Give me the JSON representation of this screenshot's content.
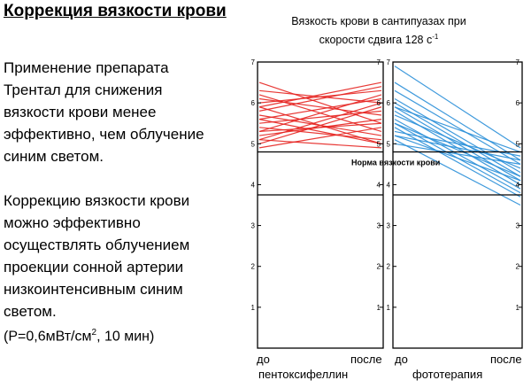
{
  "slide": {
    "title": "Коррекция вязкости крови",
    "paragraph1": [
      "Применение препарата",
      "Трентал для снижения",
      "вязкости крови менее",
      "эффективно, чем облучение",
      "синим светом."
    ],
    "paragraph2": [
      "Коррекцию вязкости крови",
      "можно эффективно",
      "осуществлять облучением",
      "проекции сонной артерии",
      "низкоинтенсивным синим",
      "светом."
    ],
    "note_prefix": "(P=0,6мВт/см",
    "note_sup": "2",
    "note_suffix": ", 10 мин)"
  },
  "chart_data": {
    "type": "line",
    "title_line1": "Вязкость крови в сантипуазах при",
    "title_line2_prefix": "скорости сдвига 128 с",
    "title_line2_sup": "-1",
    "ylim": [
      0,
      7
    ],
    "yticks": [
      1,
      2,
      3,
      4,
      5,
      6,
      7
    ],
    "norm_label": "Норма вязкости крови",
    "norm_lines": [
      3.75,
      4.8
    ],
    "panels": [
      {
        "name": "пентоксифеллин",
        "x_labels": [
          "до",
          "после"
        ],
        "color": "#e52420",
        "pairs": [
          [
            6.5,
            5.5
          ],
          [
            6.3,
            6.0
          ],
          [
            6.2,
            5.3
          ],
          [
            6.0,
            6.3
          ],
          [
            5.9,
            5.0
          ],
          [
            5.8,
            6.4
          ],
          [
            5.7,
            5.2
          ],
          [
            5.6,
            6.1
          ],
          [
            5.5,
            5.8
          ],
          [
            5.4,
            5.1
          ],
          [
            5.3,
            6.2
          ],
          [
            5.2,
            5.6
          ],
          [
            5.1,
            4.9
          ],
          [
            5.0,
            5.9
          ],
          [
            4.9,
            5.4
          ],
          [
            6.1,
            5.7
          ],
          [
            5.6,
            5.0
          ],
          [
            5.9,
            6.5
          ],
          [
            5.3,
            5.5
          ],
          [
            5.1,
            6.0
          ]
        ]
      },
      {
        "name": "фототерапия",
        "x_labels": [
          "до",
          "после"
        ],
        "color": "#2a8fd8",
        "pairs": [
          [
            6.9,
            4.9
          ],
          [
            6.5,
            4.6
          ],
          [
            6.3,
            4.5
          ],
          [
            6.1,
            4.3
          ],
          [
            5.9,
            4.8
          ],
          [
            5.8,
            4.0
          ],
          [
            5.7,
            4.4
          ],
          [
            5.6,
            3.9
          ],
          [
            5.5,
            4.2
          ],
          [
            5.4,
            3.7
          ],
          [
            5.3,
            4.7
          ],
          [
            5.2,
            4.1
          ],
          [
            5.1,
            3.5
          ],
          [
            5.0,
            4.5
          ],
          [
            6.0,
            4.2
          ],
          [
            5.5,
            3.8
          ],
          [
            5.2,
            4.6
          ],
          [
            5.9,
            4.1
          ]
        ]
      }
    ]
  }
}
